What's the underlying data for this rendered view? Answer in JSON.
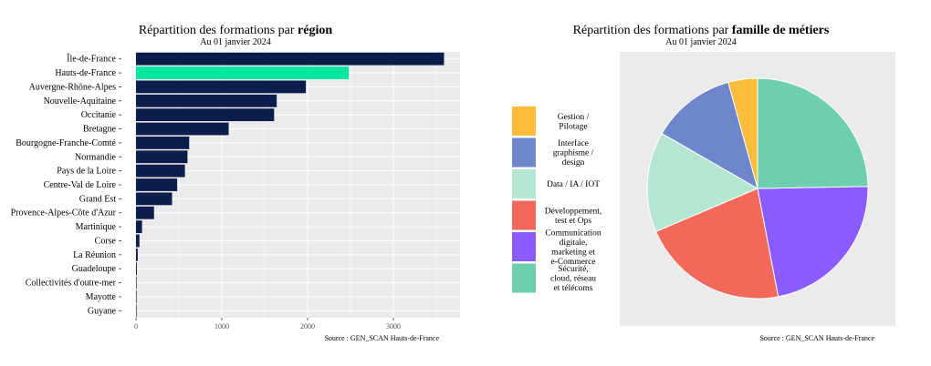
{
  "colors": {
    "panel_bg": "#ebebeb",
    "grid": "#ffffff",
    "bar_default": "#0b1e4b",
    "bar_highlight": "#00e6a0",
    "pie_border": "#ffffff"
  },
  "chart_data": [
    {
      "type": "bar",
      "orientation": "horizontal",
      "title_prefix": "Répartition des formations par ",
      "title_bold": "région",
      "subtitle": "Au 01 janvier 2024",
      "source": "Source : GEN_SCAN Hauts-de-France",
      "xlim": [
        0,
        3800
      ],
      "x_ticks": [
        0,
        1000,
        2000,
        3000
      ],
      "x_tick_labels": [
        "0",
        "1000",
        "2000",
        "3000"
      ],
      "grid": true,
      "highlight": "Hauts-de-France",
      "categories": [
        "Île-de-France",
        "Hauts-de-France",
        "Auvergne-Rhône-Alpes",
        "Nouvelle-Aquitaine",
        "Occitanie",
        "Bretagne",
        "Bourgogne-Franche-Comté",
        "Normandie",
        "Pays de la Loire",
        "Centre-Val de Loire",
        "Grand Est",
        "Provence-Alpes-Côte d'Azur",
        "Martinique",
        "Corse",
        "La Réunion",
        "Guadeloupe",
        "Collectivités d'outre-mer",
        "Mayotte",
        "Guyane"
      ],
      "values": [
        3590,
        2480,
        1980,
        1640,
        1610,
        1080,
        620,
        600,
        570,
        480,
        420,
        210,
        70,
        40,
        20,
        10,
        5,
        3,
        2
      ]
    },
    {
      "type": "pie",
      "title_prefix": "Répartition des formations par ",
      "title_bold": "famille de métiers",
      "subtitle": "Au 01 janvier 2024",
      "source": "Source : GEN_SCAN Hauts-de-France",
      "legend_position": "left",
      "slices": [
        {
          "label": [
            "Gestion /",
            "Pilotage"
          ],
          "value": 4.3,
          "color": "#fbbc3c"
        },
        {
          "label": [
            "Interface",
            "graphisme /",
            "design"
          ],
          "value": 12.4,
          "color": "#6e87cc"
        },
        {
          "label": [
            "Data / IA / IOT"
          ],
          "value": 14.7,
          "color": "#b5e6d2"
        },
        {
          "label": [
            "Développement,",
            "test et Ops"
          ],
          "value": 21.6,
          "color": "#f2685a"
        },
        {
          "label": [
            "Communication",
            "digitale,",
            "marketing et",
            "e-Commerce"
          ],
          "value": 22.3,
          "color": "#8a5cff"
        },
        {
          "label": [
            "Sécurité,",
            "cloud, réseau",
            "et télécoms"
          ],
          "value": 24.7,
          "color": "#6dcfb0"
        }
      ]
    }
  ]
}
